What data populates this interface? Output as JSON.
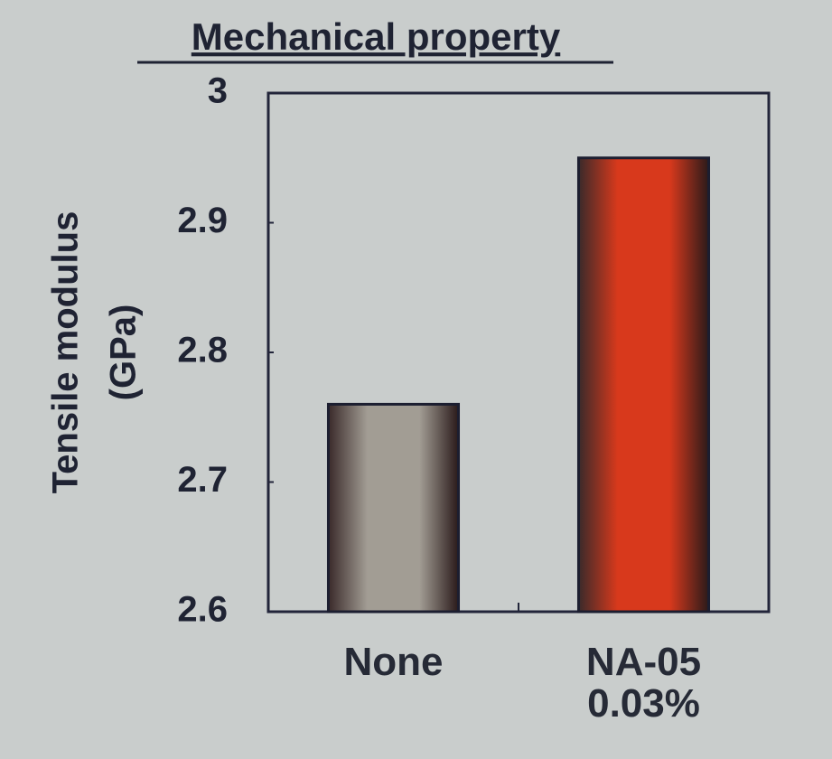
{
  "chart_data": {
    "type": "bar",
    "title": "Mechanical property",
    "y_label": [
      "Tensile modulus",
      "(GPa)"
    ],
    "categories": [
      "None",
      "NA-05 0.03%"
    ],
    "series": [
      {
        "values": [
          2.76,
          2.95
        ],
        "colors": [
          "#a29d94",
          "#d8391c"
        ]
      }
    ],
    "ylim": [
      2.6,
      3.0
    ],
    "yticks": [
      2.6,
      2.7,
      2.8,
      2.9,
      3
    ],
    "grid": false
  }
}
